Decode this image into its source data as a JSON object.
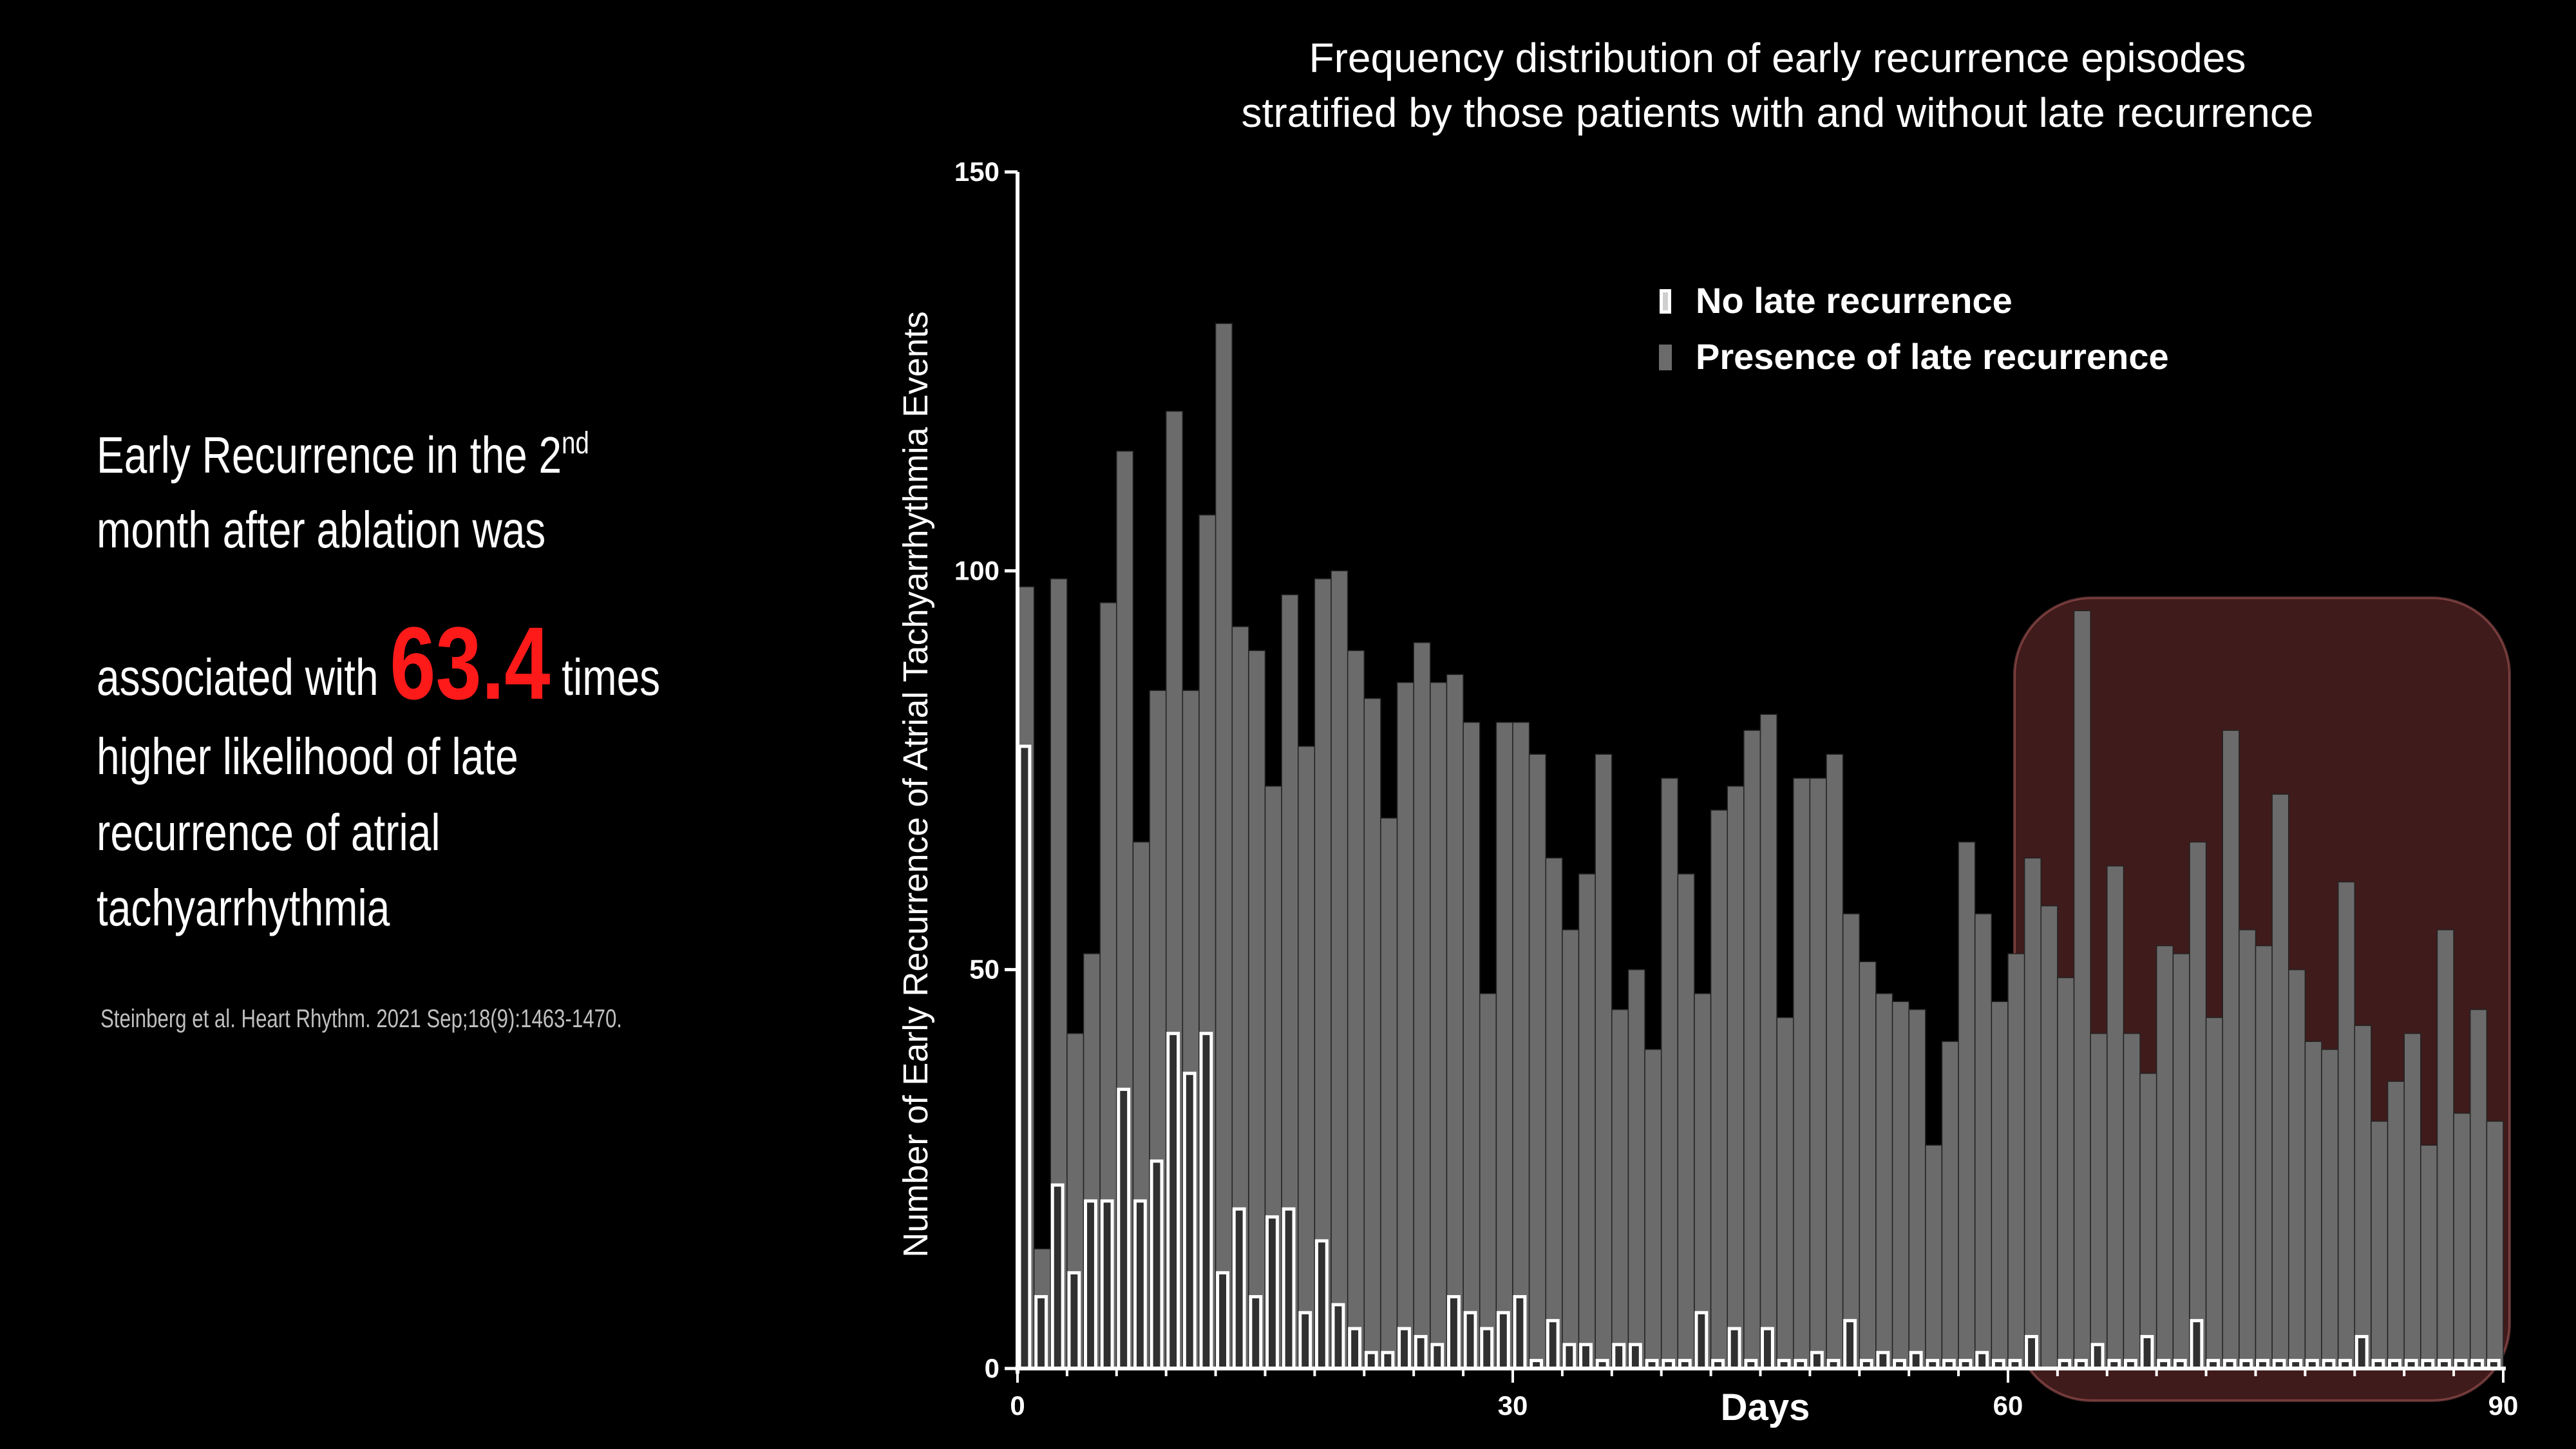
{
  "left_panel": {
    "line1_main": "Early Recurrence in the 2",
    "line1_sup": "nd",
    "line2": "month after ablation was",
    "line3_pre": "associated with ",
    "highlight": "63.4",
    "line3_post": " times",
    "line4": "higher likelihood of late",
    "line5": "recurrence of atrial",
    "line6": "tachyarrhythmia",
    "citation": "Steinberg et al. Heart Rhythm. 2021 Sep;18(9):1463-1470.",
    "highlight_color": "#ff1a1a"
  },
  "chart_data": {
    "type": "bar",
    "title_lines": [
      "Frequency distribution of early recurrence episodes",
      "stratified by those patients with and without late recurrence"
    ],
    "xlabel": "Days",
    "ylabel": "Number of Early Recurrence of Atrial Tachyarrhythmia Events",
    "xlim": [
      0,
      90
    ],
    "ylim": [
      0,
      150
    ],
    "x_ticks": [
      0,
      30,
      60,
      90
    ],
    "y_ticks": [
      0,
      50,
      100,
      150
    ],
    "x_start": 0,
    "legend_position": "top-right",
    "highlight_range": [
      60,
      90
    ],
    "highlight_color": "#ff6b6b",
    "series": [
      {
        "name": "No late recurrence",
        "color": "#ffffff",
        "values": [
          78,
          9,
          23,
          12,
          21,
          21,
          35,
          21,
          26,
          42,
          37,
          42,
          12,
          20,
          9,
          19,
          20,
          7,
          16,
          8,
          5,
          2,
          2,
          5,
          4,
          3,
          9,
          7,
          5,
          7,
          9,
          1,
          6,
          3,
          3,
          1,
          3,
          3,
          1,
          1,
          1,
          7,
          1,
          5,
          1,
          5,
          1,
          1,
          2,
          1,
          6,
          1,
          2,
          1,
          2,
          1,
          1,
          1,
          2,
          1,
          1,
          4,
          0,
          1,
          1,
          3,
          1,
          1,
          4,
          1,
          1,
          6,
          1,
          1,
          1,
          1,
          1,
          1,
          1,
          1,
          1,
          4,
          1,
          1,
          1,
          1,
          1,
          1,
          1,
          1
        ]
      },
      {
        "name": "Presence of late recurrence",
        "color": "#6b6b6b",
        "values": [
          98,
          15,
          99,
          42,
          52,
          96,
          115,
          66,
          85,
          120,
          85,
          107,
          131,
          93,
          90,
          73,
          97,
          78,
          99,
          100,
          90,
          84,
          69,
          86,
          91,
          86,
          87,
          81,
          47,
          81,
          81,
          77,
          64,
          55,
          62,
          77,
          45,
          50,
          40,
          74,
          62,
          47,
          70,
          73,
          80,
          82,
          44,
          74,
          74,
          77,
          57,
          51,
          47,
          46,
          45,
          28,
          41,
          66,
          57,
          46,
          52,
          64,
          58,
          49,
          95,
          42,
          63,
          42,
          37,
          53,
          52,
          66,
          44,
          80,
          55,
          53,
          72,
          50,
          41,
          40,
          61,
          43,
          31,
          36,
          42,
          28,
          55,
          32,
          45,
          31
        ]
      }
    ]
  }
}
